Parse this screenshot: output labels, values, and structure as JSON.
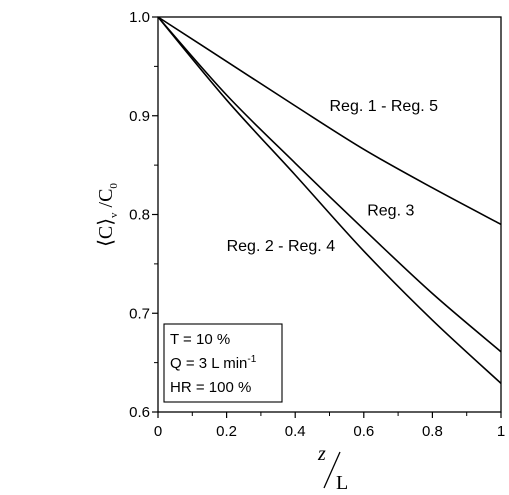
{
  "chart_data": {
    "type": "line",
    "xlabel": {
      "numerator": "z",
      "denominator": "L"
    },
    "ylabel": {
      "open": "⟨C⟩",
      "sub": "v",
      "denominator": "C",
      "den_sub": "0"
    },
    "xlim": [
      0,
      1
    ],
    "ylim": [
      0.6,
      1.0
    ],
    "xticks": [
      "0",
      "0.2",
      "0.4",
      "0.6",
      "0.8",
      "1"
    ],
    "yticks": [
      "0.6",
      "0.7",
      "0.8",
      "0.9",
      "1.0"
    ],
    "grid": false,
    "series": [
      {
        "name": "Reg. 1 - Reg. 5",
        "x": [
          0,
          0.2,
          0.4,
          0.6,
          0.8,
          1.0
        ],
        "y": [
          1.0,
          0.955,
          0.91,
          0.866,
          0.827,
          0.79
        ]
      },
      {
        "name": "Reg. 3",
        "x": [
          0,
          0.2,
          0.4,
          0.6,
          0.8,
          1.0
        ],
        "y": [
          1.0,
          0.921,
          0.852,
          0.785,
          0.72,
          0.661
        ]
      },
      {
        "name": "Reg. 2 - Reg. 4",
        "x": [
          0,
          0.2,
          0.4,
          0.6,
          0.8,
          1.0
        ],
        "y": [
          1.0,
          0.916,
          0.84,
          0.763,
          0.693,
          0.629
        ]
      }
    ],
    "annotations": [
      {
        "text": "Reg. 1 - Reg. 5",
        "x": 0.5,
        "y": 0.905
      },
      {
        "text": "Reg. 3",
        "x": 0.61,
        "y": 0.799
      },
      {
        "text": "Reg. 2 - Reg. 4",
        "x": 0.2,
        "y": 0.763
      }
    ],
    "legend_box": {
      "placement": "bottom-left",
      "lines": [
        "T = 10 %",
        "Q = 3 L min",
        "HR = 100 %"
      ],
      "q_superscript": "-1"
    }
  }
}
